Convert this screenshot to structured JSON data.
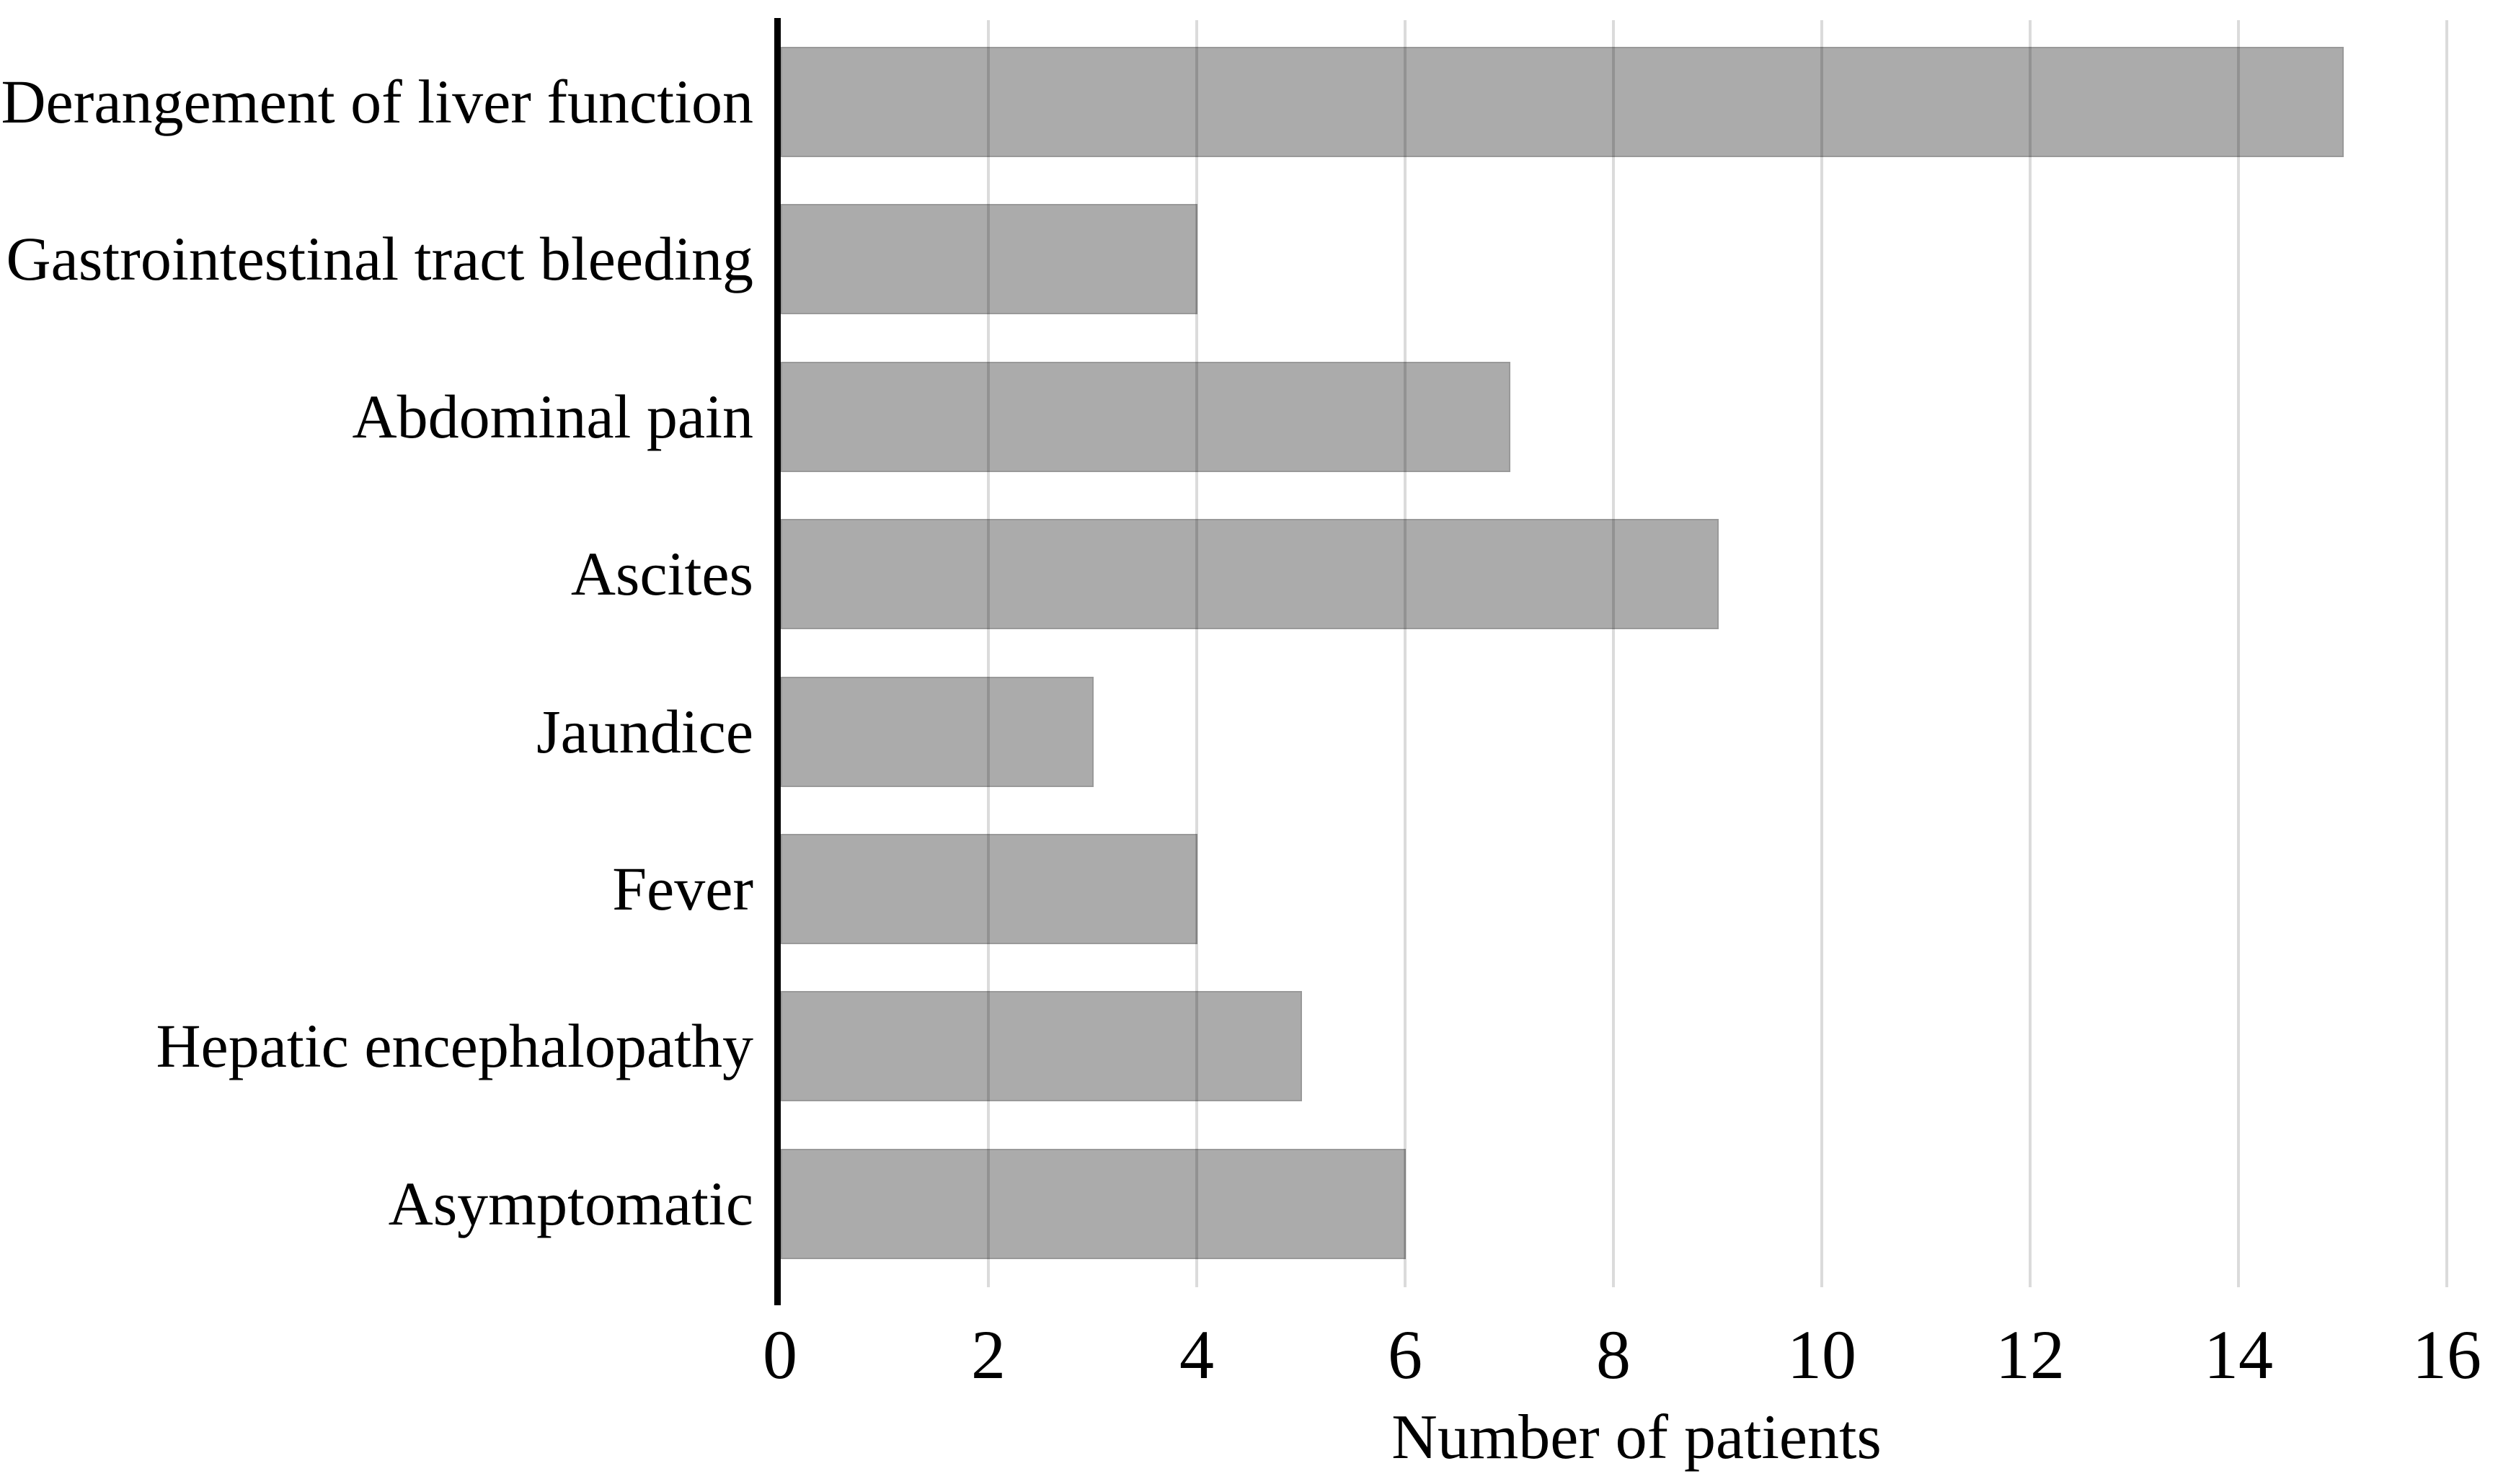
{
  "chart_data": {
    "type": "bar",
    "orientation": "horizontal",
    "title": "",
    "xlabel": "Number of patients",
    "ylabel": "",
    "categories": [
      "Derangement of liver function",
      "Gastrointestinal tract bleeding",
      "Abdominal pain",
      "Ascites",
      "Jaundice",
      "Fever",
      "Hepatic encephalopathy",
      "Asymptomatic"
    ],
    "values": [
      15,
      4,
      7,
      9,
      3,
      4,
      5,
      6
    ],
    "xlim": [
      0,
      16
    ],
    "xticks": [
      0,
      2,
      4,
      6,
      8,
      10,
      12,
      14,
      16
    ],
    "grid": true,
    "legend_position": "none",
    "colors": {
      "bar_fill": "#ababab",
      "gridline": "rgba(0,0,0,0.14)",
      "axis_line": "#000000",
      "text": "#000000",
      "background": "#ffffff"
    }
  }
}
